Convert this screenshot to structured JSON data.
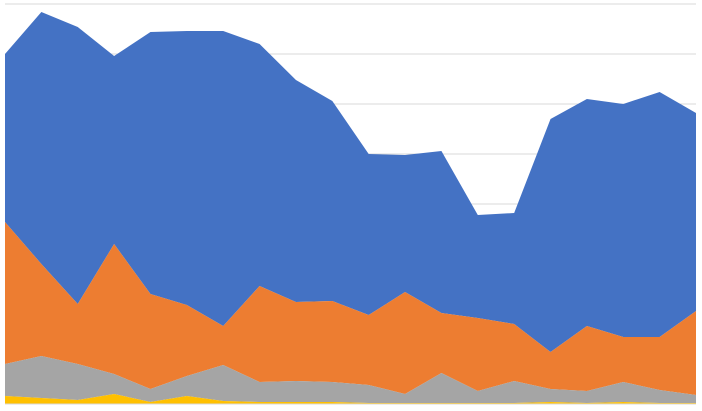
{
  "chart_data": {
    "type": "area",
    "stacked": true,
    "title": "",
    "xlabel": "",
    "ylabel": "",
    "x": [
      1,
      2,
      3,
      4,
      5,
      6,
      7,
      8,
      9,
      10,
      11,
      12,
      13,
      14,
      15,
      16,
      17,
      18,
      19,
      20
    ],
    "ylim": [
      0,
      400
    ],
    "grid": true,
    "legend": "none",
    "series": [
      {
        "color": "#ffc000",
        "values": [
          8,
          6,
          4,
          10,
          2,
          8,
          3,
          2,
          2,
          2,
          1,
          1,
          1,
          1,
          1,
          2,
          1,
          2,
          1,
          1
        ]
      },
      {
        "color": "#a5a5a5",
        "values": [
          32,
          42,
          36,
          20,
          13,
          20,
          36,
          20,
          21,
          20,
          18,
          9,
          30,
          12,
          22,
          13,
          12,
          20,
          13,
          8
        ]
      },
      {
        "color": "#ed7d31",
        "values": [
          142,
          92,
          60,
          130,
          95,
          71,
          39,
          96,
          79,
          81,
          70,
          102,
          60,
          73,
          57,
          37,
          65,
          45,
          53,
          84
        ]
      },
      {
        "color": "#4472c4",
        "values": [
          168,
          252,
          277,
          188,
          262,
          274,
          295,
          242,
          222,
          200,
          161,
          137,
          162,
          103,
          111,
          233,
          227,
          233,
          245,
          198
        ]
      }
    ]
  }
}
